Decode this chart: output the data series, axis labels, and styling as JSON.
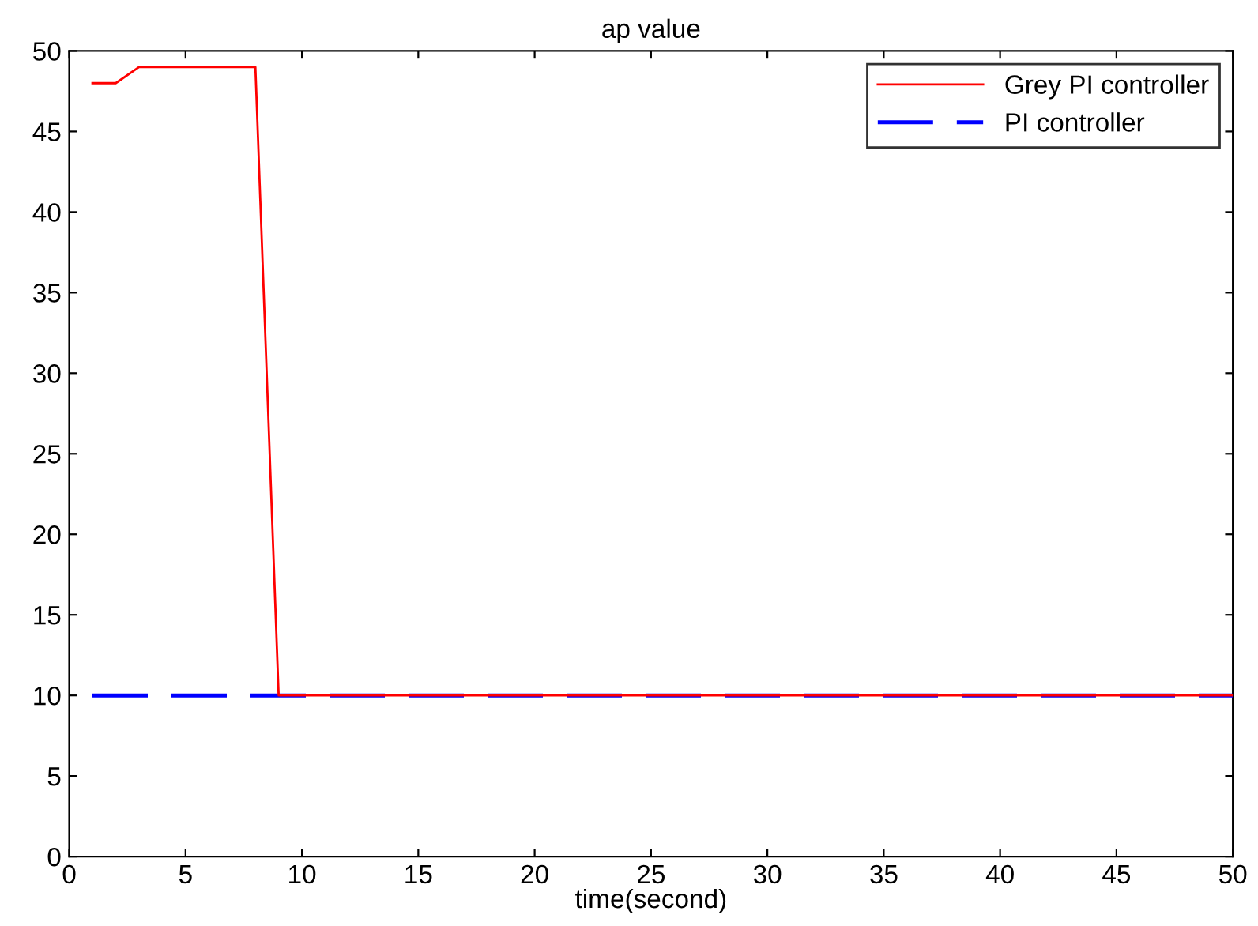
{
  "chart_data": {
    "type": "line",
    "title": "ap value",
    "xlabel": "time(second)",
    "xlim": [
      0,
      50
    ],
    "ylim": [
      0,
      50
    ],
    "xticks": [
      0,
      5,
      10,
      15,
      20,
      25,
      30,
      35,
      40,
      45,
      50
    ],
    "yticks": [
      0,
      5,
      10,
      15,
      20,
      25,
      30,
      35,
      40,
      45,
      50
    ],
    "grid": false,
    "legend": "top right",
    "series": [
      {
        "name": "Grey PI controller",
        "color": "#ff0000",
        "line_style": "solid",
        "x": [
          1,
          2,
          3,
          8,
          9,
          50
        ],
        "values": [
          48,
          48,
          49,
          49,
          10,
          10
        ]
      },
      {
        "name": "PI controller",
        "color": "#0000ff",
        "line_style": "dashed",
        "x": [
          1,
          50
        ],
        "values": [
          10,
          10
        ]
      }
    ]
  }
}
